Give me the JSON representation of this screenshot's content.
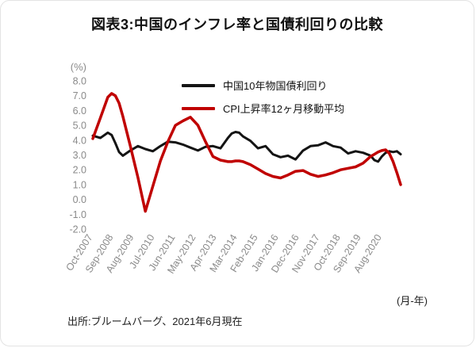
{
  "source": "出所:ブルームバーグ、2021年6月現在",
  "chart_data": {
    "type": "line",
    "title": "図表3:中国のインフレ率と国債利回りの比較",
    "ylabel": "(%)",
    "xlabel": "(月-年)",
    "ylim": [
      -2.0,
      8.0
    ],
    "yticks": [
      8.0,
      7.0,
      6.0,
      5.0,
      4.0,
      3.0,
      2.0,
      1.0,
      0.0,
      -1.0,
      -2.0
    ],
    "grid": false,
    "legend_position": "top-inside",
    "x_unit": "months since Oct-2007",
    "x_range": [
      0,
      164
    ],
    "xticks": [
      {
        "index": 0,
        "label": "Oct-2007"
      },
      {
        "index": 11,
        "label": "Sep-2008"
      },
      {
        "index": 22,
        "label": "Aug-2009"
      },
      {
        "index": 33,
        "label": "Jul-2010"
      },
      {
        "index": 44,
        "label": "Jun-2011"
      },
      {
        "index": 55,
        "label": "May-2012"
      },
      {
        "index": 66,
        "label": "Apr-2013"
      },
      {
        "index": 77,
        "label": "Mar-2014"
      },
      {
        "index": 88,
        "label": "Feb-2015"
      },
      {
        "index": 99,
        "label": "Jan-2016"
      },
      {
        "index": 110,
        "label": "Dec-2016"
      },
      {
        "index": 121,
        "label": "Nov-2017"
      },
      {
        "index": 132,
        "label": "Oct-2018"
      },
      {
        "index": 143,
        "label": "Sep-2019"
      },
      {
        "index": 154,
        "label": "Aug-2020"
      }
    ],
    "x": [
      0,
      4,
      8,
      10,
      12,
      14,
      16,
      20,
      24,
      28,
      32,
      36,
      40,
      44,
      48,
      52,
      56,
      60,
      64,
      68,
      72,
      74,
      76,
      78,
      80,
      84,
      88,
      92,
      96,
      100,
      104,
      108,
      112,
      116,
      120,
      124,
      128,
      132,
      136,
      140,
      144,
      148,
      150,
      152,
      154,
      156,
      158,
      160,
      162,
      164
    ],
    "series": [
      {
        "name": "中国10年物国債利回り",
        "color": "#141414",
        "width": 3,
        "values": [
          4.3,
          4.15,
          4.5,
          4.35,
          3.8,
          3.2,
          2.95,
          3.3,
          3.6,
          3.4,
          3.25,
          3.6,
          3.9,
          3.85,
          3.7,
          3.5,
          3.3,
          3.55,
          3.6,
          3.45,
          4.15,
          4.45,
          4.55,
          4.5,
          4.25,
          3.95,
          3.45,
          3.6,
          3.05,
          2.85,
          2.95,
          2.7,
          3.3,
          3.6,
          3.65,
          3.85,
          3.6,
          3.5,
          3.1,
          3.25,
          3.15,
          2.95,
          2.65,
          2.55,
          2.9,
          3.15,
          3.25,
          3.2,
          3.25,
          3.05
        ]
      },
      {
        "name": "CPI上昇率12ヶ月移動平均",
        "color": "#c00000",
        "width": 3.5,
        "values": [
          4.1,
          5.5,
          6.9,
          7.15,
          7.0,
          6.5,
          5.6,
          3.6,
          1.5,
          -0.8,
          0.9,
          2.6,
          3.9,
          5.0,
          5.3,
          5.55,
          5.0,
          3.9,
          2.9,
          2.65,
          2.55,
          2.55,
          2.6,
          2.6,
          2.55,
          2.35,
          2.05,
          1.75,
          1.55,
          1.45,
          1.65,
          1.9,
          1.95,
          1.7,
          1.55,
          1.65,
          1.8,
          2.0,
          2.1,
          2.2,
          2.45,
          2.9,
          3.05,
          3.2,
          3.3,
          3.35,
          3.1,
          2.55,
          1.8,
          1.0
        ]
      }
    ]
  }
}
